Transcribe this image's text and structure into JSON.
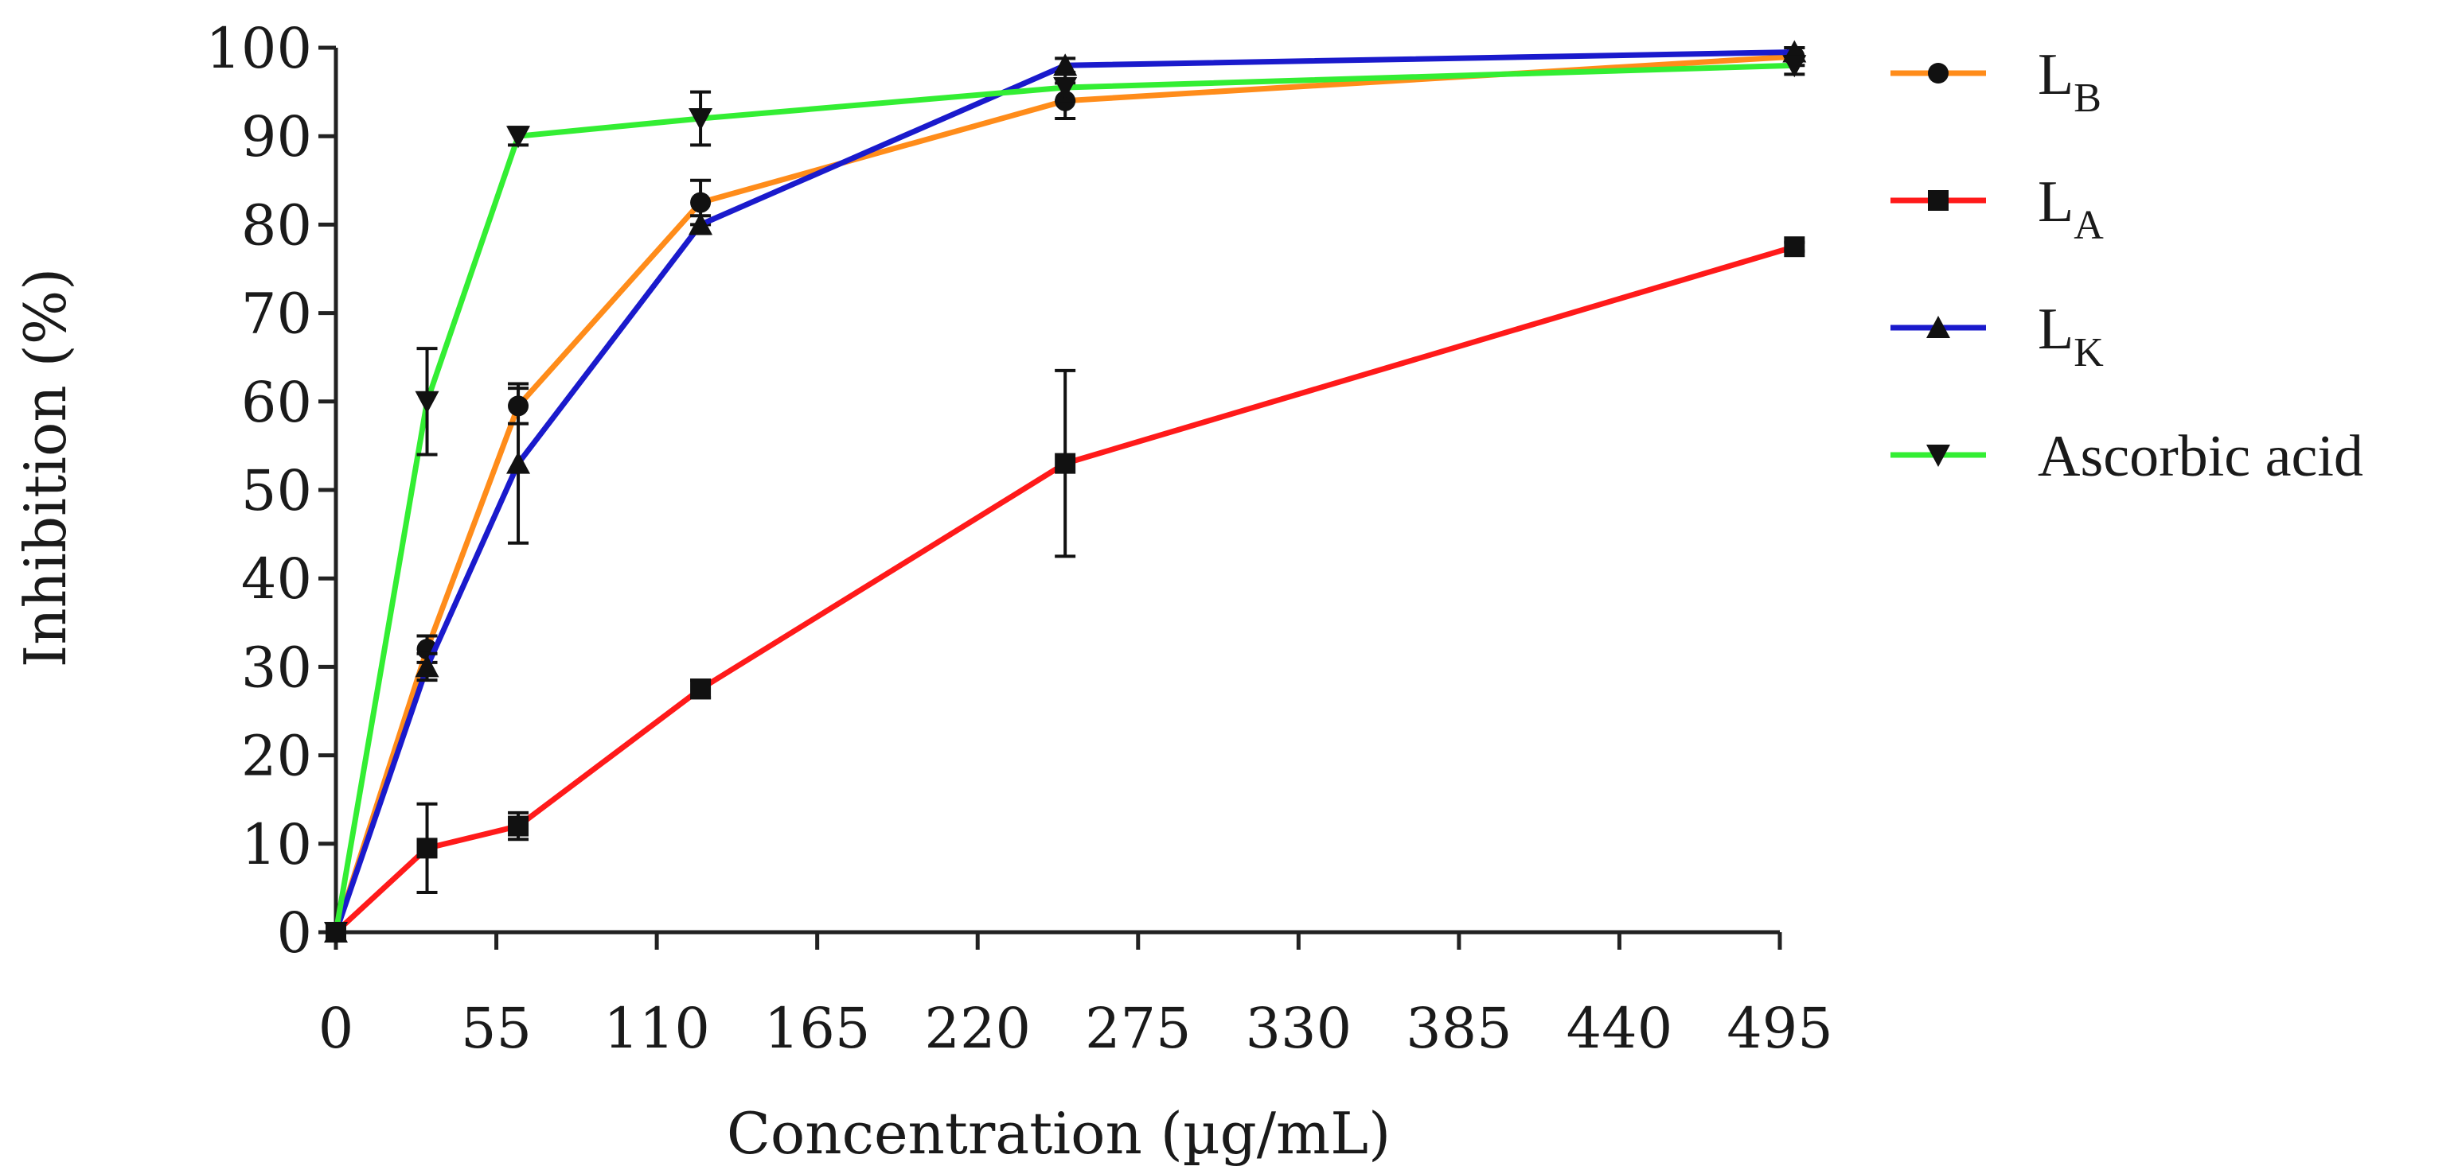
{
  "chart_data": {
    "type": "line",
    "title": "",
    "xlabel": "Concentration (µg/mL)",
    "ylabel": "Inhibition (%)",
    "xlim": [
      0,
      495
    ],
    "ylim": [
      0,
      100
    ],
    "xticks": [
      "0",
      "55",
      "110",
      "165",
      "220",
      "275",
      "330",
      "385",
      "440",
      "495"
    ],
    "yticks": [
      "0",
      "10",
      "20",
      "30",
      "40",
      "50",
      "60",
      "70",
      "80",
      "90",
      "100"
    ],
    "grid": false,
    "legend_position": "right",
    "series": [
      {
        "name": "LB",
        "label_main": "L",
        "label_sub": "B",
        "color": "#ff8c1a",
        "marker": "circle",
        "x": [
          0,
          31.25,
          62.5,
          125,
          250,
          500
        ],
        "y": [
          0,
          32,
          59.5,
          82.5,
          94,
          99
        ],
        "err": [
          0,
          1.5,
          2,
          2.5,
          2,
          1
        ]
      },
      {
        "name": "LA",
        "label_main": "L",
        "label_sub": "A",
        "color": "#ff1a1a",
        "marker": "square",
        "x": [
          0,
          31.25,
          62.5,
          125,
          250,
          500
        ],
        "y": [
          0,
          9.5,
          12,
          27.5,
          53,
          77.5
        ],
        "err": [
          0,
          5,
          1.5,
          1,
          10.5,
          0.5
        ]
      },
      {
        "name": "LK",
        "label_main": "L",
        "label_sub": "K",
        "color": "#1a1acc",
        "marker": "triangle-up",
        "x": [
          0,
          31.25,
          62.5,
          125,
          250,
          500
        ],
        "y": [
          0,
          30,
          53,
          80,
          98,
          99.5
        ],
        "err": [
          0,
          1.5,
          9,
          1,
          0.8,
          0.5
        ]
      },
      {
        "name": "Ascorbic acid",
        "label_main": "Ascorbic acid",
        "label_sub": "",
        "color": "#33ee33",
        "marker": "triangle-down",
        "x": [
          0,
          31.25,
          62.5,
          125,
          250,
          500
        ],
        "y": [
          0,
          60,
          90,
          92,
          95.5,
          98
        ],
        "err": [
          0,
          6,
          1,
          3,
          1.5,
          1
        ]
      }
    ]
  }
}
